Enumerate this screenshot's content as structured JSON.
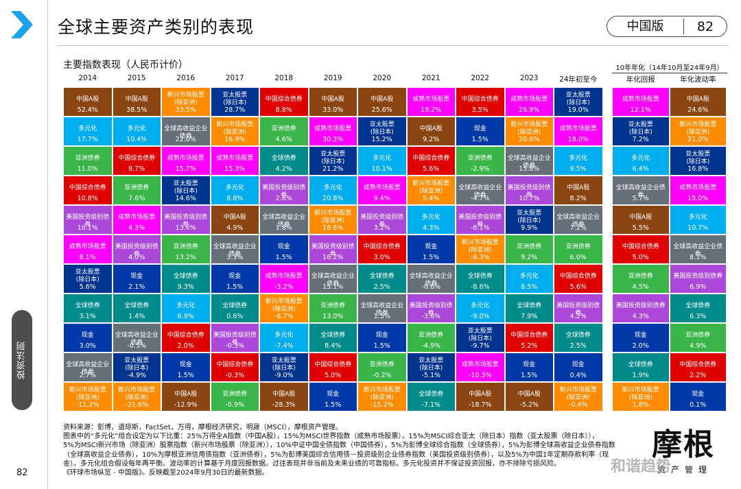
{
  "header": {
    "title": "全球主要资产类别的表现",
    "edition": "中国版",
    "page": "82"
  },
  "side": {
    "tab_label": "投资法则",
    "page_number": "82"
  },
  "chart_data": {
    "type": "table",
    "title": "主要指数表现（人民币计价）",
    "columns": [
      "2014",
      "2015",
      "2016",
      "2017",
      "2018",
      "2019",
      "2020",
      "2021",
      "2022",
      "2023",
      "24年初至今"
    ],
    "summary_title": "10年年化（14年10月至24年9月）",
    "summary_columns": [
      "年化回报",
      "年化波动率"
    ],
    "colors": {
      "中国A股": "#8b4513",
      "多元化": "#00aeef",
      "亚洲债券": "#39b54a",
      "中国综合债券": "#e00000",
      "美国投资级别债券": "#ab47d9",
      "成熟市场股票": "#ff00ff",
      "亚太股票(除日本)": "#00338d",
      "全球债券": "#008b8b",
      "现金": "#0038a8",
      "全球高收益企业债券": "#666e78",
      "新兴市场股票(除亚洲)": "#ff8c00"
    },
    "cells": [
      [
        {
          "asset": "中国A股",
          "value": "52.4%"
        },
        {
          "asset": "多元化",
          "value": "17.7%"
        },
        {
          "asset": "亚洲债券",
          "value": "11.0%"
        },
        {
          "asset": "中国综合债券",
          "value": "10.8%"
        },
        {
          "asset": "美国投资级别债券",
          "value": "10.1%"
        },
        {
          "asset": "成熟市场股票",
          "value": "8.1%"
        },
        {
          "asset": "亚太股票(除日本)",
          "value": "5.6%"
        },
        {
          "asset": "全球债券",
          "value": "3.1%"
        },
        {
          "asset": "现金",
          "value": "3.0%"
        },
        {
          "asset": "全球高收益企业债券",
          "value": "2.7%"
        },
        {
          "asset": "新兴市场股票(除亚洲)",
          "value": "-11.2%"
        }
      ],
      [
        {
          "asset": "中国A股",
          "value": "38.5%"
        },
        {
          "asset": "多元化",
          "value": "10.4%"
        },
        {
          "asset": "中国综合债券",
          "value": "8.7%"
        },
        {
          "asset": "亚洲债券",
          "value": "7.6%"
        },
        {
          "asset": "成熟市场股票",
          "value": "4.3%"
        },
        {
          "asset": "美国投资级别债券",
          "value": "4.0%"
        },
        {
          "asset": "现金",
          "value": "2.1%"
        },
        {
          "asset": "全球债券",
          "value": "1.4%"
        },
        {
          "asset": "全球高收益企业债券",
          "value": "-0.5%"
        },
        {
          "asset": "亚太股票(除日本)",
          "value": "-4.9%"
        },
        {
          "asset": "新兴市场股票(除亚洲)",
          "value": "-21.6%"
        }
      ],
      [
        {
          "asset": "新兴市场股票(除亚洲)",
          "value": "33.5%"
        },
        {
          "asset": "全球高收益企业债券",
          "value": "22.0%"
        },
        {
          "asset": "成熟市场股票",
          "value": "15.7%"
        },
        {
          "asset": "亚太股票(除日本)",
          "value": "14.6%"
        },
        {
          "asset": "美国投资级别债券",
          "value": "13.6%"
        },
        {
          "asset": "亚洲债券",
          "value": "13.2%"
        },
        {
          "asset": "全球债券",
          "value": "9.3%"
        },
        {
          "asset": "多元化",
          "value": "6.9%"
        },
        {
          "asset": "中国综合债券",
          "value": "2.0%"
        },
        {
          "asset": "现金",
          "value": "1.5%"
        },
        {
          "asset": "中国A股",
          "value": "-12.9%"
        }
      ],
      [
        {
          "asset": "亚太股票(除日本)",
          "value": "28.7%"
        },
        {
          "asset": "新兴市场股票(除亚洲)",
          "value": "16.9%"
        },
        {
          "asset": "成熟市场股票",
          "value": "15.3%"
        },
        {
          "asset": "多元化",
          "value": "8.8%"
        },
        {
          "asset": "中国A股",
          "value": "4.9%"
        },
        {
          "asset": "全球高收益企业债券",
          "value": "3.3%"
        },
        {
          "asset": "现金",
          "value": "1.5%"
        },
        {
          "asset": "全球债券",
          "value": "0.6%"
        },
        {
          "asset": "美国投资级别债券",
          "value": "-0.3%"
        },
        {
          "asset": "中国综合债券",
          "value": "-0.3%"
        },
        {
          "asset": "亚洲债券",
          "value": "-0.9%"
        }
      ],
      [
        {
          "asset": "中国综合债券",
          "value": "8.8%"
        },
        {
          "asset": "亚洲债券",
          "value": "4.6%"
        },
        {
          "asset": "全球债券",
          "value": "4.2%"
        },
        {
          "asset": "美国投资级别债券",
          "value": "2.8%"
        },
        {
          "asset": "全球高收益企业债券",
          "value": "1.8%"
        },
        {
          "asset": "现金",
          "value": "1.5%"
        },
        {
          "asset": "成熟市场股票",
          "value": "-3.2%"
        },
        {
          "asset": "新兴市场股票(除亚洲)",
          "value": "-6.7%"
        },
        {
          "asset": "多元化",
          "value": "-7.4%"
        },
        {
          "asset": "亚太股票(除日本)",
          "value": "-9.0%"
        },
        {
          "asset": "中国A股",
          "value": "-28.3%"
        }
      ],
      [
        {
          "asset": "中国A股",
          "value": "33.0%"
        },
        {
          "asset": "成熟市场股票",
          "value": "30.3%"
        },
        {
          "asset": "亚太股票(除日本)",
          "value": "21.2%"
        },
        {
          "asset": "多元化",
          "value": "20.8%"
        },
        {
          "asset": "新兴市场股票(除亚洲)",
          "value": "18.6%"
        },
        {
          "asset": "美国投资级别债券",
          "value": "16.2%"
        },
        {
          "asset": "全球高收益企业债券",
          "value": "15.1%"
        },
        {
          "asset": "亚洲债券",
          "value": "13.0%"
        },
        {
          "asset": "全球债券",
          "value": "8.4%"
        },
        {
          "asset": "中国综合债券",
          "value": "5.0%"
        },
        {
          "asset": "现金",
          "value": "1.5%"
        }
      ],
      [
        {
          "asset": "中国A股",
          "value": "25.6%"
        },
        {
          "asset": "亚太股票(除日本)",
          "value": "15.2%"
        },
        {
          "asset": "多元化",
          "value": "10.1%"
        },
        {
          "asset": "成熟市场股票",
          "value": "9.4%"
        },
        {
          "asset": "美国投资级别债券",
          "value": "3.2%"
        },
        {
          "asset": "中国综合债券",
          "value": "3.0%"
        },
        {
          "asset": "全球债券",
          "value": "2.5%"
        },
        {
          "asset": "全球高收益企业债券",
          "value": "1.5%"
        },
        {
          "asset": "现金",
          "value": "1.5%"
        },
        {
          "asset": "亚洲债券",
          "value": "-0.2%"
        },
        {
          "asset": "新兴市场股票(除亚洲)",
          "value": "-15.2%"
        }
      ],
      [
        {
          "asset": "成熟市场股票",
          "value": "19.2%"
        },
        {
          "asset": "中国A股",
          "value": "9.2%"
        },
        {
          "asset": "中国综合债券",
          "value": "5.6%"
        },
        {
          "asset": "新兴市场股票(除亚洲)",
          "value": "5.4%"
        },
        {
          "asset": "多元化",
          "value": "4.3%"
        },
        {
          "asset": "现金",
          "value": "1.5%"
        },
        {
          "asset": "全球高收益企业债券",
          "value": "-0.6%"
        },
        {
          "asset": "美国投资级别债券",
          "value": "-3.6%"
        },
        {
          "asset": "亚洲债券",
          "value": "-4.9%"
        },
        {
          "asset": "亚太股票(除日本)",
          "value": "-5.1%"
        },
        {
          "asset": "全球债券",
          "value": "-7.1%"
        }
      ],
      [
        {
          "asset": "中国综合债券",
          "value": "3.5%"
        },
        {
          "asset": "现金",
          "value": "1.5%"
        },
        {
          "asset": "亚洲债券",
          "value": "-2.9%"
        },
        {
          "asset": "全球高收益企业债券",
          "value": "-4.7%"
        },
        {
          "asset": "美国投资级别债券",
          "value": "-8.1%"
        },
        {
          "asset": "新兴市场股票(除亚洲)",
          "value": "-8.3%"
        },
        {
          "asset": "全球债券",
          "value": "-8.6%"
        },
        {
          "asset": "多元化",
          "value": "-9.0%"
        },
        {
          "asset": "亚太股票(除日本)",
          "value": "-9.7%"
        },
        {
          "asset": "成熟市场股票",
          "value": "-10.3%"
        },
        {
          "asset": "中国A股",
          "value": "-18.7%"
        }
      ],
      [
        {
          "asset": "成熟市场股票",
          "value": "26.9%"
        },
        {
          "asset": "新兴市场股票(除亚洲)",
          "value": "20.6%"
        },
        {
          "asset": "全球高收益企业债券",
          "value": "15.8%"
        },
        {
          "asset": "美国投资级别债券",
          "value": "10.7%"
        },
        {
          "asset": "亚太股票(除日本)",
          "value": "9.9%"
        },
        {
          "asset": "亚洲债券",
          "value": "9.2%"
        },
        {
          "asset": "多元化",
          "value": "8.5%"
        },
        {
          "asset": "全球债券",
          "value": "7.9%"
        },
        {
          "asset": "中国综合债券",
          "value": "5.2%"
        },
        {
          "asset": "现金",
          "value": "1.5%"
        },
        {
          "asset": "中国A股",
          "value": "-5.2%"
        }
      ],
      [
        {
          "asset": "亚太股票(除日本)",
          "value": "19.0%"
        },
        {
          "asset": "成熟市场股票",
          "value": "18.0%"
        },
        {
          "asset": "多元化",
          "value": "9.5%"
        },
        {
          "asset": "中国A股",
          "value": "8.2%"
        },
        {
          "asset": "全球高收益企业债券",
          "value": "7.2%"
        },
        {
          "asset": "亚洲债券",
          "value": "6.0%"
        },
        {
          "asset": "中国综合债券",
          "value": "5.6%"
        },
        {
          "asset": "美国投资级别债券",
          "value": "4.2%"
        },
        {
          "asset": "全球债券",
          "value": "2.5%"
        },
        {
          "asset": "现金",
          "value": "0.4%"
        },
        {
          "asset": "新兴市场股票(除亚洲)",
          "value": "-0.4%"
        }
      ]
    ],
    "summary_cells": [
      [
        {
          "asset": "成熟市场股票",
          "value": "12.1%"
        },
        {
          "asset": "亚太股票(除日本)",
          "value": "7.2%"
        },
        {
          "asset": "多元化",
          "value": "6.4%"
        },
        {
          "asset": "全球高收益企业债券",
          "value": "5.7%"
        },
        {
          "asset": "中国A股",
          "value": "5.5%"
        },
        {
          "asset": "中国综合债券",
          "value": "5.0%"
        },
        {
          "asset": "亚洲债券",
          "value": "4.5%"
        },
        {
          "asset": "美国投资级别债券",
          "value": "4.3%"
        },
        {
          "asset": "现金",
          "value": "2.0%"
        },
        {
          "asset": "全球债券",
          "value": "1.9%"
        },
        {
          "asset": "新兴市场股票(除亚洲)",
          "value": "1.8%"
        }
      ],
      [
        {
          "asset": "中国A股",
          "value": "24.6%"
        },
        {
          "asset": "新兴市场股票(除亚洲)",
          "value": "21.0%"
        },
        {
          "asset": "亚太股票(除日本)",
          "value": "16.8%"
        },
        {
          "asset": "成熟市场股票",
          "value": "15.0%"
        },
        {
          "asset": "多元化",
          "value": "10.7%"
        },
        {
          "asset": "全球高收益企业债券",
          "value": "8.1%"
        },
        {
          "asset": "美国投资级别债券",
          "value": "6.9%"
        },
        {
          "asset": "全球债券",
          "value": "6.3%"
        },
        {
          "asset": "亚洲债券",
          "value": "4.9%"
        },
        {
          "asset": "中国综合债券",
          "value": "2.2%"
        },
        {
          "asset": "现金",
          "value": "0.1%"
        }
      ]
    ]
  },
  "footnotes": [
    "资料来源：彭博，道琼斯，FactSet，万得，摩根经济研究，明晟（MSCI），摩根资产管理。",
    "图表中的“多元化”组合设定为以下比重：25%万得全A指数（中国A股），15%为MSCI世界指数（成熟市场股票），15%为MSCI综合亚太（除日本）指数（亚太股票（除日本）），",
    "5%为MSCI新兴市场（除亚洲）股票指数（新兴市场股票（除亚洲）），10%中证中国全债指数（中国债券），5%为彭博全球综合指数（全球债券），5%为彭博全球高收益企业债券指数",
    "（全球高收益企业债券），10%为摩根亚洲信用债指数（亚洲债券），5%为彭博美国综合信用债－投资级别企业债券指数（美国投资级别债券），以及5%为中国1年定期存款利率（现",
    "金）。多元化组合假设每年再平衡。波动率的计算基于月度回报数据。过往表现并非当前及未来业绩的可靠指标。多元化投资并不保证投资回报，亦不排除亏损风险。",
    "《环球市场纵览 - 中国版》。反映截至2024年9月30日的最新数据。"
  ],
  "brand": {
    "logo_text": "摩根",
    "sub_text": "资产管理",
    "watermark": "和谐趋势"
  }
}
